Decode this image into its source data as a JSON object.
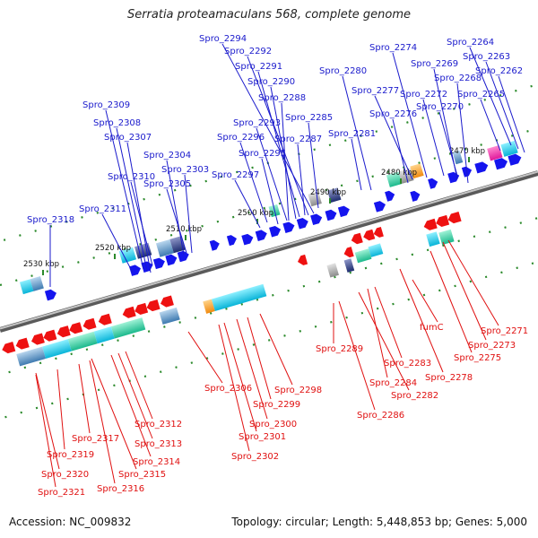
{
  "title": "Serratia proteamaculans 568, complete genome",
  "footer": {
    "accession": "Accession: NC_009832",
    "topology": "Topology: circular; Length: 5,448,853 bp; Genes: 5,000"
  },
  "colors": {
    "forward_label": "#1a1acc",
    "reverse_label": "#e01010",
    "forward_gene": "#1515ee",
    "reverse_gene": "#ee1111",
    "backbone": "#888888",
    "tick": "#2b8a2b"
  },
  "kbp_labels": [
    "2470 kbp",
    "2480 kbp",
    "2490 kbp",
    "2500 kbp",
    "2510 kbp",
    "2520 kbp",
    "2530 kbp"
  ],
  "forward_genes": [
    "Spro_2264",
    "Spro_2263",
    "Spro_2262",
    "Spro_2274",
    "Spro_2269",
    "Spro_2268",
    "Spro_2280",
    "Spro_2272",
    "Spro_2265",
    "Spro_2277",
    "Spro_2270",
    "Spro_2276",
    "Spro_2281",
    "Spro_2294",
    "Spro_2292",
    "Spro_2291",
    "Spro_2290",
    "Spro_2288",
    "Spro_2285",
    "Spro_2293",
    "Spro_2296",
    "Spro_2287",
    "Spro_2295",
    "Spro_2297",
    "Spro_2309",
    "Spro_2308",
    "Spro_2307",
    "Spro_2304",
    "Spro_2303",
    "Spro_2310",
    "Spro_2305",
    "Spro_2311",
    "Spro_2318"
  ],
  "reverse_genes": [
    "Spro_2271",
    "Spro_2273",
    "fumC",
    "Spro_2275",
    "Spro_2289",
    "Spro_2283",
    "Spro_2278",
    "Spro_2284",
    "Spro_2282",
    "Spro_2286",
    "Spro_2298",
    "Spro_2306",
    "Spro_2299",
    "Spro_2300",
    "Spro_2301",
    "Spro_2302",
    "Spro_2312",
    "Spro_2317",
    "Spro_2313",
    "Spro_2319",
    "Spro_2314",
    "Spro_2315",
    "Spro_2320",
    "Spro_2316",
    "Spro_2321"
  ]
}
